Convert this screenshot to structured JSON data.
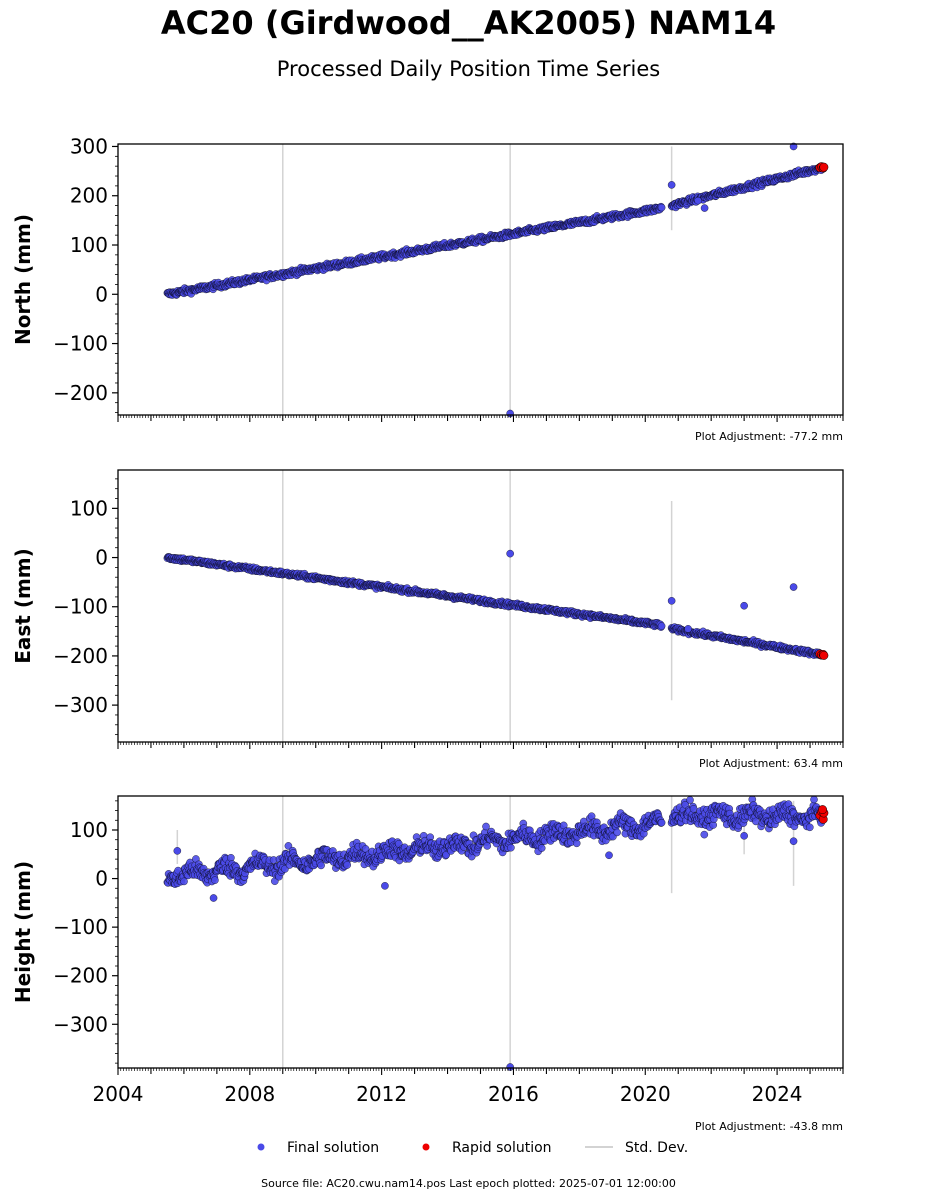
{
  "header": {
    "title": "AC20 (Girdwood__AK2005) NAM14",
    "subtitle": "Processed Daily Position Time Series"
  },
  "footer": {
    "source": "Source file: AC20.cwu.nam14.pos  Last epoch plotted: 2025-07-01 12:00:00"
  },
  "legend": {
    "final": "Final solution",
    "rapid": "Rapid solution",
    "std": "Std. Dev."
  },
  "colors": {
    "final": "#4a4ae8",
    "rapid": "#ee0000",
    "std": "#d3d3d3",
    "edge": "#000000"
  },
  "chart_data": [
    {
      "type": "scatter",
      "ylabel": "North (mm)",
      "adjustment": "Plot Adjustment: -77.2 mm",
      "ylim": [
        -245,
        305
      ],
      "yticks": [
        -200,
        -100,
        0,
        100,
        200,
        300
      ],
      "xlim": [
        2004.0,
        2026.0
      ],
      "show_xticklabels": false,
      "trend": [
        [
          2005.5,
          0
        ],
        [
          2020.5,
          175
        ]
      ],
      "trend2": [
        [
          2020.8,
          180
        ],
        [
          2025.4,
          258
        ]
      ],
      "noise": 4,
      "outliers": [
        [
          2020.8,
          222
        ],
        [
          2024.5,
          300
        ],
        [
          2015.9,
          -242
        ],
        [
          2021.8,
          175
        ],
        [
          2021.6,
          190
        ]
      ],
      "std_lines": [
        [
          2009.0,
          -245,
          305
        ],
        [
          2015.9,
          -245,
          305
        ],
        [
          2020.8,
          130,
          300
        ]
      ],
      "rapid": [
        [
          2025.3,
          257
        ],
        [
          2025.35,
          259
        ],
        [
          2025.4,
          256
        ],
        [
          2025.42,
          258
        ]
      ]
    },
    {
      "type": "scatter",
      "ylabel": "East (mm)",
      "adjustment": "Plot Adjustment: 63.4 mm",
      "ylim": [
        -375,
        178
      ],
      "yticks": [
        -300,
        -200,
        -100,
        0,
        100
      ],
      "xlim": [
        2004.0,
        2026.0
      ],
      "show_xticklabels": false,
      "trend": [
        [
          2005.5,
          0
        ],
        [
          2020.5,
          -138
        ]
      ],
      "trend2": [
        [
          2020.8,
          -145
        ],
        [
          2025.4,
          -198
        ]
      ],
      "noise": 3,
      "outliers": [
        [
          2015.9,
          8
        ],
        [
          2020.8,
          -88
        ],
        [
          2023.0,
          -98
        ],
        [
          2024.5,
          -60
        ],
        [
          2021.3,
          -145
        ]
      ],
      "std_lines": [
        [
          2009.0,
          -375,
          178
        ],
        [
          2015.9,
          -375,
          178
        ],
        [
          2020.8,
          -290,
          115
        ]
      ],
      "rapid": [
        [
          2025.3,
          -196
        ],
        [
          2025.35,
          -198
        ],
        [
          2025.4,
          -197
        ],
        [
          2025.42,
          -199
        ]
      ]
    },
    {
      "type": "scatter",
      "ylabel": "Height (mm)",
      "adjustment": "Plot Adjustment: -43.8 mm",
      "ylim": [
        -390,
        170
      ],
      "yticks": [
        -300,
        -200,
        -100,
        0,
        100
      ],
      "xlim": [
        2004.0,
        2026.0
      ],
      "xticks": [
        2004,
        2008,
        2012,
        2016,
        2020,
        2024
      ],
      "show_xticklabels": true,
      "trend": [
        [
          2005.5,
          5
        ],
        [
          2020.5,
          115
        ]
      ],
      "trend2": [
        [
          2020.8,
          130
        ],
        [
          2025.4,
          128
        ]
      ],
      "noise": 14,
      "outliers": [
        [
          2005.8,
          57
        ],
        [
          2006.9,
          -40
        ],
        [
          2012.1,
          -15
        ],
        [
          2018.9,
          48
        ],
        [
          2023.0,
          88
        ],
        [
          2024.5,
          77
        ],
        [
          2015.9,
          -388
        ]
      ],
      "std_lines": [
        [
          2009.0,
          -390,
          170
        ],
        [
          2015.9,
          -390,
          170
        ],
        [
          2020.8,
          -30,
          170
        ],
        [
          2005.8,
          30,
          100
        ],
        [
          2024.5,
          -15,
          160
        ],
        [
          2023.0,
          50,
          140
        ]
      ],
      "rapid": [
        [
          2025.3,
          130
        ],
        [
          2025.35,
          138
        ],
        [
          2025.4,
          122
        ],
        [
          2025.42,
          135
        ],
        [
          2025.38,
          142
        ]
      ]
    }
  ]
}
